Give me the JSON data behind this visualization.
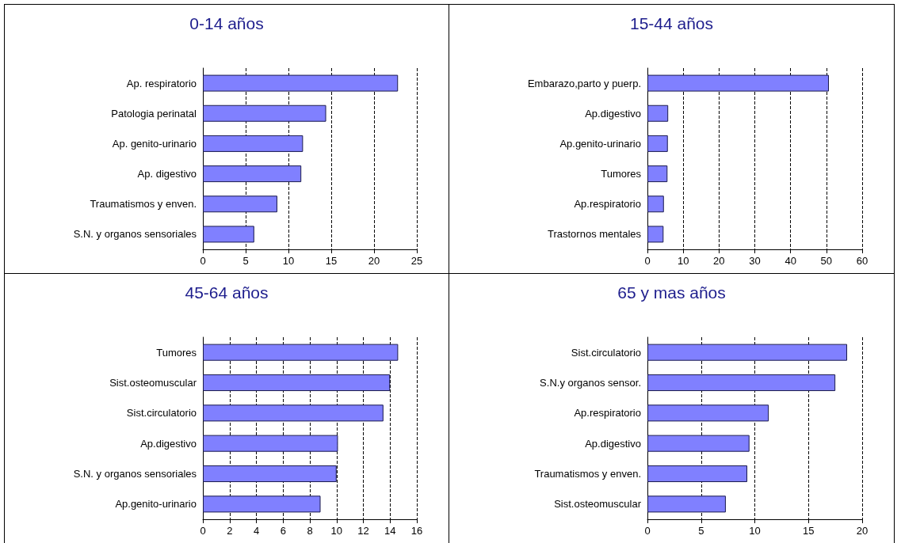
{
  "chart_data": [
    {
      "type": "bar",
      "orientation": "horizontal",
      "title": "0-14 años",
      "categories": [
        "Ap. respiratorio",
        "Patologia perinatal",
        "Ap. genito-urinario",
        "Ap. digestivo",
        "Traumatismos y enven.",
        "S.N. y organos sensoriales"
      ],
      "values": [
        22.8,
        14.4,
        11.7,
        11.5,
        8.7,
        6.0
      ],
      "color": "#8080ff",
      "xlim": [
        0,
        25
      ],
      "xticks": [
        0,
        5,
        10,
        15,
        20,
        25
      ],
      "grid": "x"
    },
    {
      "type": "bar",
      "orientation": "horizontal",
      "title": "15-44 años",
      "categories": [
        "Embarazo,parto y puerp.",
        "Ap.digestivo",
        "Ap.genito-urinario",
        "Tumores",
        "Ap.respiratorio",
        "Trastornos mentales"
      ],
      "values": [
        50.7,
        5.8,
        5.7,
        5.6,
        4.6,
        4.5
      ],
      "color": "#8080ff",
      "xlim": [
        0,
        60
      ],
      "xticks": [
        0,
        10,
        20,
        30,
        40,
        50,
        60
      ],
      "grid": "x"
    },
    {
      "type": "bar",
      "orientation": "horizontal",
      "title": "45-64 años",
      "categories": [
        "Tumores",
        "Sist.osteomuscular",
        "Sist.circulatorio",
        "Ap.digestivo",
        "S.N. y organos sensoriales",
        "Ap.genito-urinario"
      ],
      "values": [
        14.6,
        14.0,
        13.5,
        10.1,
        10.0,
        8.8
      ],
      "color": "#8080ff",
      "xlim": [
        0,
        16
      ],
      "xticks": [
        0,
        2,
        4,
        6,
        8,
        10,
        12,
        14,
        16
      ],
      "grid": "x"
    },
    {
      "type": "bar",
      "orientation": "horizontal",
      "title": "65 y mas años",
      "categories": [
        "Sist.circulatorio",
        "S.N.y organos sensor.",
        "Ap.respiratorio",
        "Ap.digestivo",
        "Traumatismos y enven.",
        "Sist.osteomuscular"
      ],
      "values": [
        18.6,
        17.5,
        11.3,
        9.5,
        9.3,
        7.3
      ],
      "color": "#8080ff",
      "xlim": [
        0,
        20
      ],
      "xticks": [
        0,
        5,
        10,
        15,
        20
      ],
      "grid": "x"
    }
  ]
}
